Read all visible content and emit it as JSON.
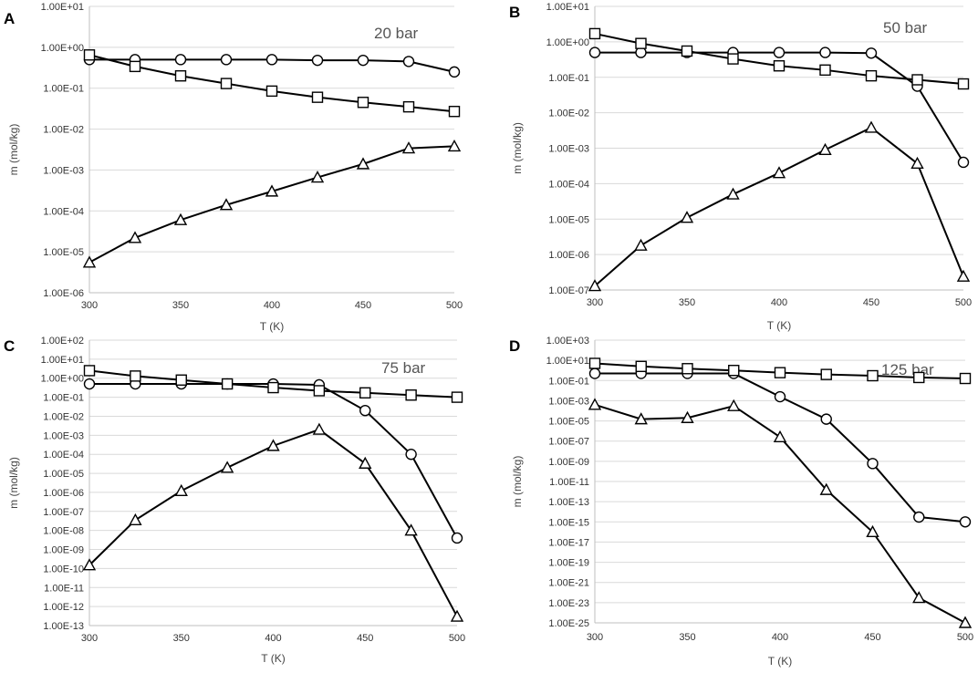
{
  "chart_data": [
    {
      "type": "line",
      "panel_label": "A",
      "annotation": "20 bar",
      "xlabel": "T (K)",
      "ylabel": "m (mol/kg)",
      "x_ticks": [
        "300",
        "350",
        "400",
        "450",
        "500"
      ],
      "xlim": [
        300,
        500
      ],
      "y_log_range": [
        -6,
        1
      ],
      "y_ticks": [
        "1.00E-06",
        "1.00E-05",
        "1.00E-04",
        "1.00E-03",
        "1.00E-02",
        "1.00E-01",
        "1.00E+00",
        "1.00E+01"
      ],
      "x": [
        300,
        325,
        350,
        375,
        400,
        425,
        450,
        475,
        500
      ],
      "series": [
        {
          "name": "circle",
          "marker": "circle",
          "values": [
            0.5,
            0.5,
            0.5,
            0.5,
            0.5,
            0.48,
            0.48,
            0.45,
            0.25
          ]
        },
        {
          "name": "square",
          "marker": "square",
          "values": [
            0.65,
            0.34,
            0.2,
            0.13,
            0.085,
            0.06,
            0.045,
            0.035,
            0.027
          ]
        },
        {
          "name": "triangle",
          "marker": "triangle",
          "values": [
            5.5e-06,
            2.2e-05,
            6e-05,
            0.00014,
            0.0003,
            0.00066,
            0.0014,
            0.0034,
            0.0038
          ]
        }
      ]
    },
    {
      "type": "line",
      "panel_label": "B",
      "annotation": "50 bar",
      "xlabel": "T (K)",
      "ylabel": "m (mol/kg)",
      "x_ticks": [
        "300",
        "350",
        "400",
        "450",
        "500"
      ],
      "xlim": [
        300,
        500
      ],
      "y_log_range": [
        -7,
        1
      ],
      "y_ticks": [
        "1.00E-07",
        "1.00E-06",
        "1.00E-05",
        "1.00E-04",
        "1.00E-03",
        "1.00E-02",
        "1.00E-01",
        "1.00E+00",
        "1.00E+01"
      ],
      "x": [
        300,
        325,
        350,
        375,
        400,
        425,
        450,
        475,
        500
      ],
      "series": [
        {
          "name": "circle",
          "marker": "circle",
          "values": [
            0.5,
            0.5,
            0.5,
            0.5,
            0.5,
            0.5,
            0.48,
            0.056,
            0.0004
          ]
        },
        {
          "name": "square",
          "marker": "square",
          "values": [
            1.7,
            0.9,
            0.55,
            0.33,
            0.21,
            0.16,
            0.11,
            0.085,
            0.065
          ]
        },
        {
          "name": "triangle",
          "marker": "triangle",
          "values": [
            1.3e-07,
            1.8e-06,
            1.1e-05,
            5e-05,
            0.0002,
            0.0009,
            0.0038,
            0.00037,
            2.4e-07
          ]
        }
      ]
    },
    {
      "type": "line",
      "panel_label": "C",
      "annotation": "75 bar",
      "xlabel": "T (K)",
      "ylabel": "m (mol/kg)",
      "x_ticks": [
        "300",
        "350",
        "400",
        "450",
        "500"
      ],
      "xlim": [
        300,
        500
      ],
      "y_log_range": [
        -13,
        2
      ],
      "y_ticks": [
        "1.00E-13",
        "1.00E-12",
        "1.00E-11",
        "1.00E-10",
        "1.00E-09",
        "1.00E-08",
        "1.00E-07",
        "1.00E-06",
        "1.00E-05",
        "1.00E-04",
        "1.00E-03",
        "1.00E-02",
        "1.00E-01",
        "1.00E+00",
        "1.00E+01",
        "1.00E+02"
      ],
      "x": [
        300,
        325,
        350,
        375,
        400,
        425,
        450,
        475,
        500
      ],
      "series": [
        {
          "name": "circle",
          "marker": "circle",
          "values": [
            0.5,
            0.5,
            0.5,
            0.5,
            0.5,
            0.45,
            0.02,
            0.0001,
            4e-09
          ]
        },
        {
          "name": "square",
          "marker": "square",
          "values": [
            2.5,
            1.3,
            0.8,
            0.5,
            0.32,
            0.22,
            0.17,
            0.13,
            0.1
          ]
        },
        {
          "name": "triangle",
          "marker": "triangle",
          "values": [
            1.5e-10,
            3.5e-08,
            1.2e-06,
            2e-05,
            0.00028,
            0.002,
            3.3e-05,
            1e-08,
            3e-13
          ]
        }
      ]
    },
    {
      "type": "line",
      "panel_label": "D",
      "annotation": "125 bar",
      "xlabel": "T (K)",
      "ylabel": "m (mol/kg)",
      "x_ticks": [
        "300",
        "350",
        "400",
        "450",
        "500"
      ],
      "xlim": [
        300,
        500
      ],
      "y_log_range": [
        -25,
        3
      ],
      "y_ticks": [
        "1.00E-25",
        "1.00E-23",
        "1.00E-21",
        "1.00E-19",
        "1.00E-17",
        "1.00E-15",
        "1.00E-13",
        "1.00E-11",
        "1.00E-09",
        "1.00E-07",
        "1.00E-05",
        "1.00E-03",
        "1.00E-01",
        "1.00E+01",
        "1.00E+03"
      ],
      "x": [
        300,
        325,
        350,
        375,
        400,
        425,
        450,
        475,
        500
      ],
      "series": [
        {
          "name": "circle",
          "marker": "circle",
          "values": [
            0.5,
            0.5,
            0.5,
            0.5,
            0.0025,
            1.5e-05,
            6e-10,
            3e-15,
            1e-15
          ]
        },
        {
          "name": "square",
          "marker": "square",
          "values": [
            5,
            2.5,
            1.5,
            1,
            0.6,
            0.4,
            0.3,
            0.2,
            0.16
          ]
        },
        {
          "name": "triangle",
          "marker": "triangle",
          "values": [
            0.0004,
            1.5e-05,
            2e-05,
            0.0003,
            2.5e-07,
            1.5e-12,
            1e-16,
            3e-23,
            1e-25
          ]
        }
      ]
    }
  ]
}
